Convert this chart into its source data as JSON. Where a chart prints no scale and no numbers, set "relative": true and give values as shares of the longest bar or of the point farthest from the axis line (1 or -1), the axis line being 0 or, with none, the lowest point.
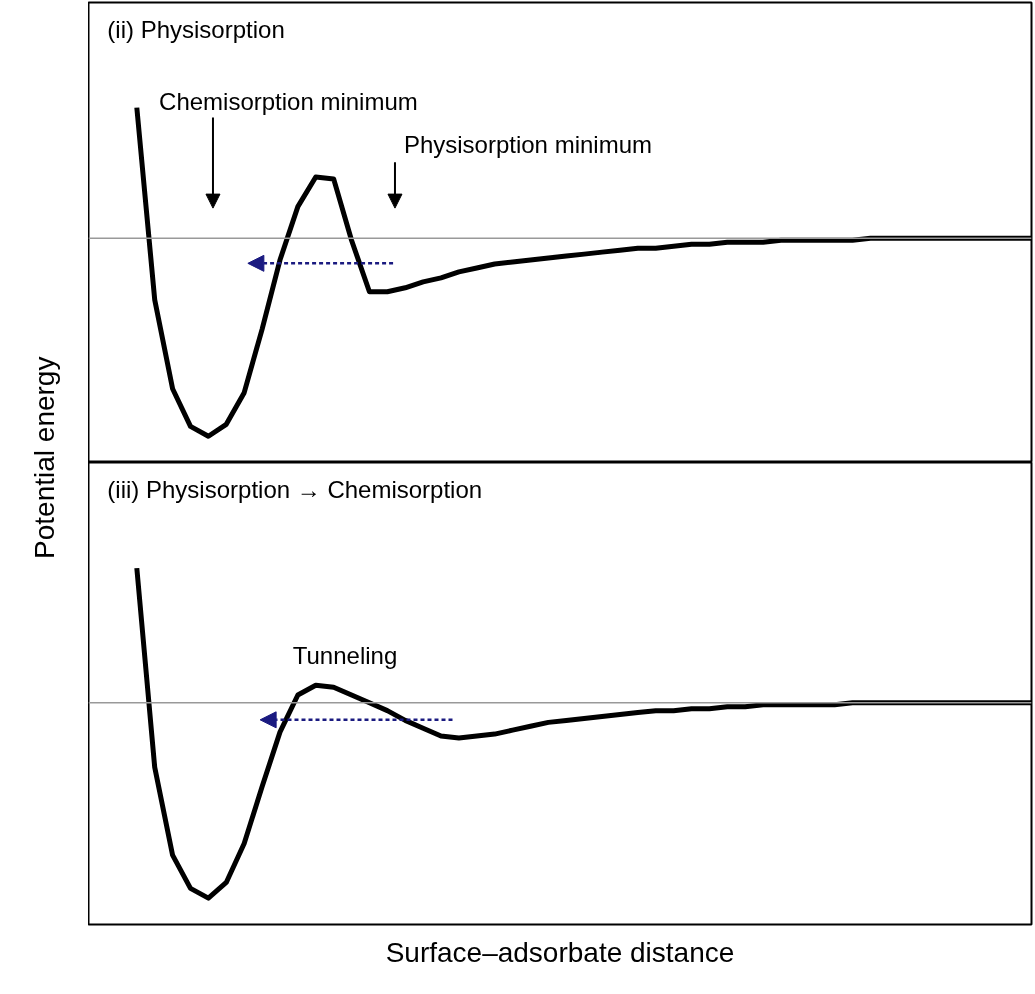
{
  "chart_data": [
    {
      "type": "line",
      "title": "(ii) Physisorption",
      "ylabel": "Potential energy",
      "relative": true,
      "grid": false,
      "marker": "none",
      "line_style": "solid",
      "categories": [
        null,
        null,
        null,
        null,
        null,
        null,
        null,
        null,
        null,
        null,
        null,
        null,
        null,
        null,
        null,
        null,
        null,
        null,
        null,
        null,
        null,
        null,
        null,
        null,
        null,
        null,
        null,
        null,
        null,
        null,
        null,
        null,
        null,
        null,
        null,
        null,
        null,
        null,
        null,
        null,
        null,
        null,
        null,
        null,
        null,
        null,
        null,
        null,
        null,
        null,
        null
      ],
      "series": [
        {
          "color": "#000000",
          "values": [
            0.66,
            -0.31,
            -0.76,
            -0.95,
            -1.0,
            -0.94,
            -0.78,
            -0.46,
            -0.11,
            0.16,
            0.31,
            0.3,
            -0.01,
            -0.27,
            -0.27,
            -0.25,
            -0.22,
            -0.2,
            -0.17,
            -0.15,
            -0.13,
            -0.12,
            -0.11,
            -0.1,
            -0.09,
            -0.08,
            -0.07,
            -0.06,
            -0.05,
            -0.05,
            -0.04,
            -0.03,
            -0.03,
            -0.02,
            -0.02,
            -0.02,
            -0.01,
            -0.01,
            -0.01,
            -0.01,
            -0.01,
            0,
            0,
            0,
            0,
            0,
            0,
            0,
            0,
            0,
            0
          ]
        }
      ],
      "ref_lines": [
        {
          "axis": "y",
          "value": 0,
          "color": "#999999"
        }
      ],
      "annotations": [
        "Chemisorption minimum",
        "Physisorption minimum"
      ]
    },
    {
      "type": "line",
      "title": "(iii) Physisorption → Chemisorption",
      "xlabel": "Surface–adsorbate distance",
      "relative": true,
      "grid": false,
      "marker": "none",
      "line_style": "solid",
      "categories": [
        null,
        null,
        null,
        null,
        null,
        null,
        null,
        null,
        null,
        null,
        null,
        null,
        null,
        null,
        null,
        null,
        null,
        null,
        null,
        null,
        null,
        null,
        null,
        null,
        null,
        null,
        null,
        null,
        null,
        null,
        null,
        null,
        null,
        null,
        null,
        null,
        null,
        null,
        null,
        null,
        null,
        null,
        null,
        null,
        null,
        null,
        null,
        null,
        null,
        null,
        null
      ],
      "series": [
        {
          "color": "#000000",
          "values": [
            0.69,
            -0.33,
            -0.78,
            -0.95,
            -1.0,
            -0.92,
            -0.72,
            -0.43,
            -0.15,
            0.04,
            0.09,
            0.08,
            0.04,
            0.0,
            -0.04,
            -0.09,
            -0.13,
            -0.17,
            -0.18,
            -0.17,
            -0.16,
            -0.14,
            -0.12,
            -0.1,
            -0.09,
            -0.08,
            -0.07,
            -0.06,
            -0.05,
            -0.04,
            -0.04,
            -0.03,
            -0.03,
            -0.02,
            -0.02,
            -0.01,
            -0.01,
            -0.01,
            -0.01,
            -0.01,
            0,
            0,
            0,
            0,
            0,
            0,
            0,
            0,
            0,
            0,
            0
          ]
        }
      ],
      "ref_lines": [
        {
          "axis": "y",
          "value": 0,
          "color": "#999999"
        }
      ],
      "annotations": [
        "Tunneling"
      ]
    }
  ]
}
